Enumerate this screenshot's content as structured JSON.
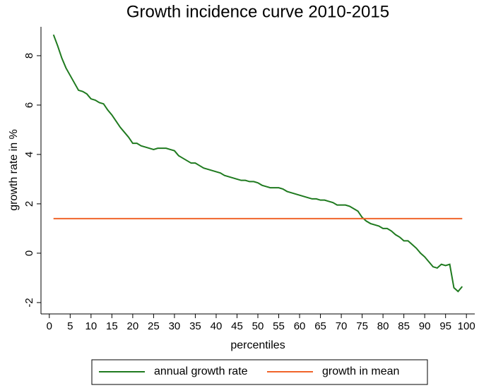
{
  "chart_data": {
    "type": "line",
    "title": "Growth incidence curve 2010-2015",
    "x_label": "percentiles",
    "y_label": "growth rate in %",
    "xlim": [
      -2,
      102
    ],
    "ylim": [
      -2.46,
      9.17
    ],
    "xticks": [
      0,
      5,
      10,
      15,
      20,
      25,
      30,
      35,
      40,
      45,
      50,
      55,
      60,
      65,
      70,
      75,
      80,
      85,
      90,
      95,
      100
    ],
    "yticks": [
      -2,
      0,
      2,
      4,
      6,
      8
    ],
    "grid": false,
    "legend": "bottom",
    "series": [
      {
        "name": "annual growth rate",
        "color": "#1f7a1f",
        "x": [
          1,
          2,
          3,
          4,
          5,
          6,
          7,
          8,
          9,
          10,
          11,
          12,
          13,
          14,
          15,
          16,
          17,
          18,
          19,
          20,
          21,
          22,
          23,
          24,
          25,
          26,
          27,
          28,
          29,
          30,
          31,
          32,
          33,
          34,
          35,
          36,
          37,
          38,
          39,
          40,
          41,
          42,
          43,
          44,
          45,
          46,
          47,
          48,
          49,
          50,
          51,
          52,
          53,
          54,
          55,
          56,
          57,
          58,
          59,
          60,
          61,
          62,
          63,
          64,
          65,
          66,
          67,
          68,
          69,
          70,
          71,
          72,
          73,
          74,
          75,
          76,
          77,
          78,
          79,
          80,
          81,
          82,
          83,
          84,
          85,
          86,
          87,
          88,
          89,
          90,
          91,
          92,
          93,
          94,
          95,
          96,
          97,
          98,
          99
        ],
        "values": [
          8.85,
          8.4,
          7.9,
          7.5,
          7.2,
          6.9,
          6.6,
          6.55,
          6.45,
          6.25,
          6.2,
          6.1,
          6.05,
          5.8,
          5.6,
          5.35,
          5.1,
          4.9,
          4.7,
          4.45,
          4.45,
          4.35,
          4.3,
          4.25,
          4.2,
          4.25,
          4.25,
          4.25,
          4.2,
          4.15,
          3.95,
          3.85,
          3.75,
          3.65,
          3.65,
          3.55,
          3.45,
          3.4,
          3.35,
          3.3,
          3.25,
          3.15,
          3.1,
          3.05,
          3.0,
          2.95,
          2.95,
          2.9,
          2.9,
          2.85,
          2.75,
          2.7,
          2.65,
          2.65,
          2.65,
          2.6,
          2.5,
          2.45,
          2.4,
          2.35,
          2.3,
          2.25,
          2.2,
          2.2,
          2.15,
          2.15,
          2.1,
          2.05,
          1.95,
          1.95,
          1.95,
          1.9,
          1.8,
          1.7,
          1.45,
          1.3,
          1.2,
          1.15,
          1.1,
          1.0,
          1.0,
          0.9,
          0.75,
          0.65,
          0.5,
          0.5,
          0.35,
          0.2,
          0.0,
          -0.15,
          -0.35,
          -0.55,
          -0.6,
          -0.45,
          -0.5,
          -0.45,
          -1.4,
          -1.55,
          -1.35
        ]
      },
      {
        "name": "growth in mean",
        "color": "#f0642a",
        "x": [
          1,
          99
        ],
        "values": [
          1.4,
          1.4
        ]
      }
    ]
  }
}
